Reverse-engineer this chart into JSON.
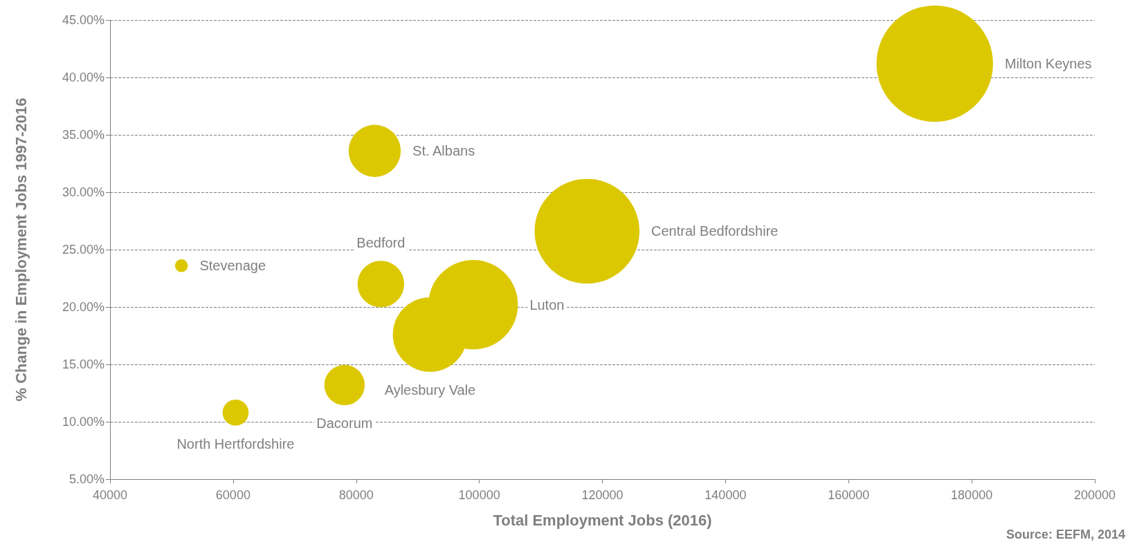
{
  "chart_data": {
    "type": "bubble",
    "xlabel": "Total Employment Jobs (2016)",
    "ylabel": "% Change in Employment Jobs 1997-2016",
    "series": [
      {
        "name": "Milton Keynes",
        "color": "#dcc800",
        "x": [
          174000
        ],
        "values": [
          41.2
        ],
        "sizes": [
          1
        ]
      },
      {
        "name": "St. Albans",
        "color": "#dcc800",
        "x": [
          83000
        ],
        "values": [
          33.6
        ],
        "sizes": [
          0.2
        ]
      },
      {
        "name": "Central Bedfordshire",
        "color": "#dcc800",
        "x": [
          117500
        ],
        "values": [
          26.6
        ],
        "sizes": [
          0.81
        ]
      },
      {
        "name": "Stevenage",
        "color": "#dcc800",
        "x": [
          51600
        ],
        "values": [
          23.6
        ],
        "sizes": [
          0.012
        ]
      },
      {
        "name": "Bedford",
        "color": "#dcc800",
        "x": [
          84000
        ],
        "values": [
          22.0
        ],
        "sizes": [
          0.16
        ]
      },
      {
        "name": "Luton",
        "color": "#dcc800",
        "x": [
          99000
        ],
        "values": [
          20.2
        ],
        "sizes": [
          0.59
        ]
      },
      {
        "name": "Aylesbury Vale",
        "color": "#dcc800",
        "x": [
          92000
        ],
        "values": [
          17.6
        ],
        "sizes": [
          0.41
        ]
      },
      {
        "name": "Dacorum",
        "color": "#dcc800",
        "x": [
          78100
        ],
        "values": [
          13.2
        ],
        "sizes": [
          0.12
        ]
      },
      {
        "name": "North Hertfordshire",
        "color": "#dcc800",
        "x": [
          60400
        ],
        "values": [
          10.8
        ],
        "sizes": [
          0.05
        ]
      }
    ],
    "xlim": [
      40000,
      200000
    ],
    "xticks": [
      40000,
      60000,
      80000,
      100000,
      120000,
      140000,
      160000,
      180000,
      200000
    ],
    "ylim": [
      5,
      45
    ],
    "yticks": [
      {
        "value": 5,
        "label": "5.00%"
      },
      {
        "value": 10,
        "label": "10.00%"
      },
      {
        "value": 15,
        "label": "15.00%"
      },
      {
        "value": 20,
        "label": "20.00%"
      },
      {
        "value": 25,
        "label": "25.00%"
      },
      {
        "value": 30,
        "label": "30.00%"
      },
      {
        "value": 35,
        "label": "35.00%"
      },
      {
        "value": 40,
        "label": "40.00%"
      },
      {
        "value": 45,
        "label": "45.00%"
      }
    ],
    "grid": "y",
    "legend": false,
    "annotations": [
      "Source: EEFM, 2014"
    ]
  }
}
